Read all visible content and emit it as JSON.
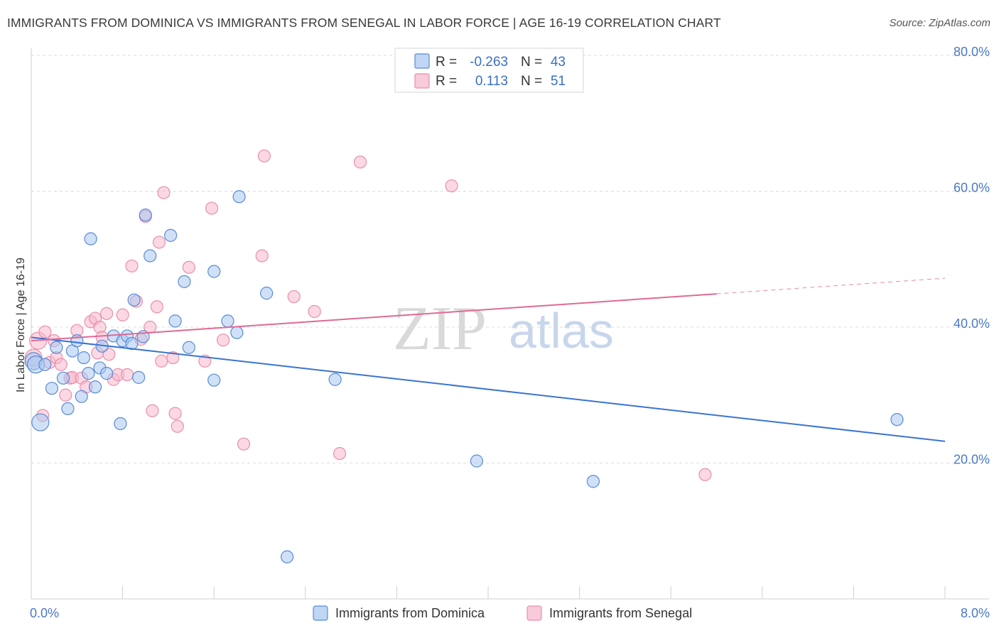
{
  "header": {
    "title": "IMMIGRANTS FROM DOMINICA VS IMMIGRANTS FROM SENEGAL IN LABOR FORCE | AGE 16-19 CORRELATION CHART",
    "source": "Source: ZipAtlas.com"
  },
  "watermark": {
    "zip": "ZIP",
    "atlas": "atlas"
  },
  "legend": {
    "dominica": {
      "r_label": "R =",
      "r_value": "-0.263",
      "n_label": "N =",
      "n_value": "43"
    },
    "senegal": {
      "r_label": "R =",
      "r_value": "0.113",
      "n_label": "N =",
      "n_value": "51"
    }
  },
  "colors": {
    "dominica_fill": "#aac8f0",
    "dominica_stroke": "#5a8ad6",
    "dominica_line": "#3a74d0",
    "senegal_fill": "#f7b8cc",
    "senegal_stroke": "#e98fab",
    "senegal_line": "#e06a94"
  },
  "chart_data": {
    "type": "scatter",
    "title": "IMMIGRANTS FROM DOMINICA VS IMMIGRANTS FROM SENEGAL IN LABOR FORCE | AGE 16-19 CORRELATION CHART",
    "xlabel": "",
    "ylabel": "In Labor Force | Age 16-19",
    "xlim": [
      0,
      8
    ],
    "ylim": [
      0,
      80
    ],
    "x_ticks": [
      0,
      8
    ],
    "x_tick_labels": [
      "0.0%",
      "8.0%"
    ],
    "y_ticks": [
      20,
      40,
      60,
      80
    ],
    "y_tick_labels": [
      "20.0%",
      "40.0%",
      "60.0%",
      "80.0%"
    ],
    "grid": true,
    "legend_position": "top-center",
    "series": [
      {
        "name": "Immigrants from Dominica",
        "r": -0.263,
        "n": 43,
        "trend": {
          "x": [
            0.0,
            8.0
          ],
          "y": [
            38.5,
            23.2
          ],
          "solid_to": 8.0
        },
        "points": [
          [
            0.02,
            35.0
          ],
          [
            0.04,
            34.5
          ],
          [
            0.08,
            26.0
          ],
          [
            0.12,
            34.5
          ],
          [
            0.18,
            31.0
          ],
          [
            0.22,
            37.0
          ],
          [
            0.28,
            32.5
          ],
          [
            0.32,
            28.0
          ],
          [
            0.36,
            36.5
          ],
          [
            0.4,
            38.0
          ],
          [
            0.44,
            29.8
          ],
          [
            0.46,
            35.5
          ],
          [
            0.5,
            33.2
          ],
          [
            0.52,
            53.0
          ],
          [
            0.56,
            31.2
          ],
          [
            0.6,
            34.0
          ],
          [
            0.62,
            37.2
          ],
          [
            0.66,
            33.2
          ],
          [
            0.72,
            38.7
          ],
          [
            0.78,
            25.8
          ],
          [
            0.8,
            38.0
          ],
          [
            0.84,
            38.7
          ],
          [
            0.88,
            37.6
          ],
          [
            0.9,
            44.0
          ],
          [
            0.94,
            32.6
          ],
          [
            0.98,
            38.6
          ],
          [
            1.0,
            56.5
          ],
          [
            1.04,
            50.5
          ],
          [
            1.22,
            53.5
          ],
          [
            1.26,
            40.9
          ],
          [
            1.34,
            46.7
          ],
          [
            1.38,
            37.0
          ],
          [
            1.6,
            32.2
          ],
          [
            1.6,
            48.2
          ],
          [
            1.72,
            40.9
          ],
          [
            1.8,
            39.2
          ],
          [
            1.82,
            59.2
          ],
          [
            2.06,
            45.0
          ],
          [
            2.24,
            6.2
          ],
          [
            2.66,
            32.3
          ],
          [
            3.9,
            20.3
          ],
          [
            4.92,
            17.3
          ],
          [
            7.58,
            26.4
          ]
        ]
      },
      {
        "name": "Immigrants from Senegal",
        "r": 0.113,
        "n": 51,
        "trend": {
          "x": [
            0.0,
            8.0
          ],
          "y": [
            38.0,
            47.2
          ],
          "solid_to": 6.0
        },
        "points": [
          [
            0.02,
            35.5
          ],
          [
            0.06,
            38.0
          ],
          [
            0.1,
            27.0
          ],
          [
            0.12,
            39.3
          ],
          [
            0.16,
            34.8
          ],
          [
            0.2,
            38.0
          ],
          [
            0.22,
            35.5
          ],
          [
            0.26,
            34.5
          ],
          [
            0.3,
            30.0
          ],
          [
            0.34,
            32.5
          ],
          [
            0.36,
            32.6
          ],
          [
            0.4,
            39.5
          ],
          [
            0.44,
            32.5
          ],
          [
            0.48,
            31.2
          ],
          [
            0.52,
            40.8
          ],
          [
            0.56,
            41.3
          ],
          [
            0.58,
            36.2
          ],
          [
            0.6,
            40.0
          ],
          [
            0.62,
            38.5
          ],
          [
            0.66,
            42.0
          ],
          [
            0.68,
            36.0
          ],
          [
            0.72,
            32.3
          ],
          [
            0.76,
            33.0
          ],
          [
            0.8,
            41.8
          ],
          [
            0.84,
            33.0
          ],
          [
            0.88,
            49.0
          ],
          [
            0.92,
            43.8
          ],
          [
            0.96,
            38.2
          ],
          [
            1.0,
            56.3
          ],
          [
            1.04,
            40.0
          ],
          [
            1.06,
            27.7
          ],
          [
            1.1,
            43.0
          ],
          [
            1.12,
            52.5
          ],
          [
            1.14,
            35.0
          ],
          [
            1.16,
            59.8
          ],
          [
            1.24,
            35.5
          ],
          [
            1.26,
            27.3
          ],
          [
            1.28,
            25.4
          ],
          [
            1.38,
            48.8
          ],
          [
            1.52,
            35.0
          ],
          [
            1.58,
            57.5
          ],
          [
            1.68,
            38.1
          ],
          [
            1.86,
            22.8
          ],
          [
            2.02,
            50.5
          ],
          [
            2.04,
            65.2
          ],
          [
            2.3,
            44.5
          ],
          [
            2.48,
            42.3
          ],
          [
            2.7,
            21.4
          ],
          [
            2.88,
            64.3
          ],
          [
            3.68,
            60.8
          ],
          [
            5.9,
            18.3
          ]
        ]
      }
    ]
  },
  "bottom_legend": {
    "dominica_label": "Immigrants from Dominica",
    "senegal_label": "Immigrants from Senegal"
  }
}
